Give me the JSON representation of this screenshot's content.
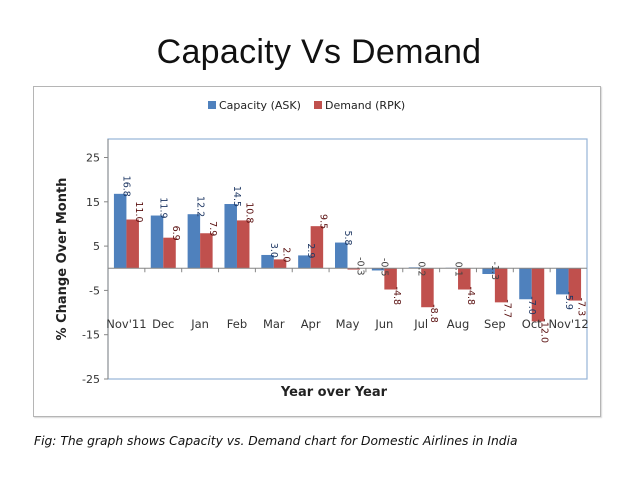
{
  "slide": {
    "title": "Capacity Vs Demand",
    "caption": "Fig: The graph shows Capacity vs. Demand chart for Domestic Airlines in India"
  },
  "chart_data": {
    "type": "bar",
    "title": "",
    "xlabel": "Year over Year",
    "ylabel": "% Change Over Month",
    "ylim": [
      -25,
      30
    ],
    "yticks": [
      25,
      15,
      5,
      -5,
      -15,
      -25
    ],
    "grid": false,
    "legend_position": "top-center",
    "categories": [
      "Nov'11",
      "Dec",
      "Jan",
      "Feb",
      "Mar",
      "Apr",
      "May",
      "Jun",
      "Jul",
      "Aug",
      "Sep",
      "Oct",
      "Nov'12"
    ],
    "series": [
      {
        "name": "Capacity (ASK)",
        "color": "#4F81BD",
        "values": [
          16.8,
          11.9,
          12.2,
          14.5,
          3.0,
          2.9,
          5.8,
          -0.5,
          0.2,
          0.1,
          -1.3,
          -7.0,
          -5.9
        ],
        "labels": [
          "16.8",
          "11.9",
          "12.2",
          "14.5",
          "3.0",
          "2.9",
          "5.8",
          "-0.5",
          "0.2",
          "0.1",
          "-1.3",
          "-7.0",
          "-5.9"
        ]
      },
      {
        "name": "Demand (RPK)",
        "color": "#C0504D",
        "values": [
          11.0,
          6.9,
          7.9,
          10.8,
          2.0,
          9.5,
          -0.3,
          -4.8,
          -8.8,
          -4.8,
          -7.7,
          -12.0,
          -7.3
        ],
        "labels": [
          "11.0",
          "6.9",
          "7.9",
          "10.8",
          "2.0",
          "9.5",
          "-0.3",
          "-4.8",
          "-8.8",
          "-4.8",
          "-7.7",
          "-12.0",
          "-7.3"
        ]
      }
    ]
  }
}
